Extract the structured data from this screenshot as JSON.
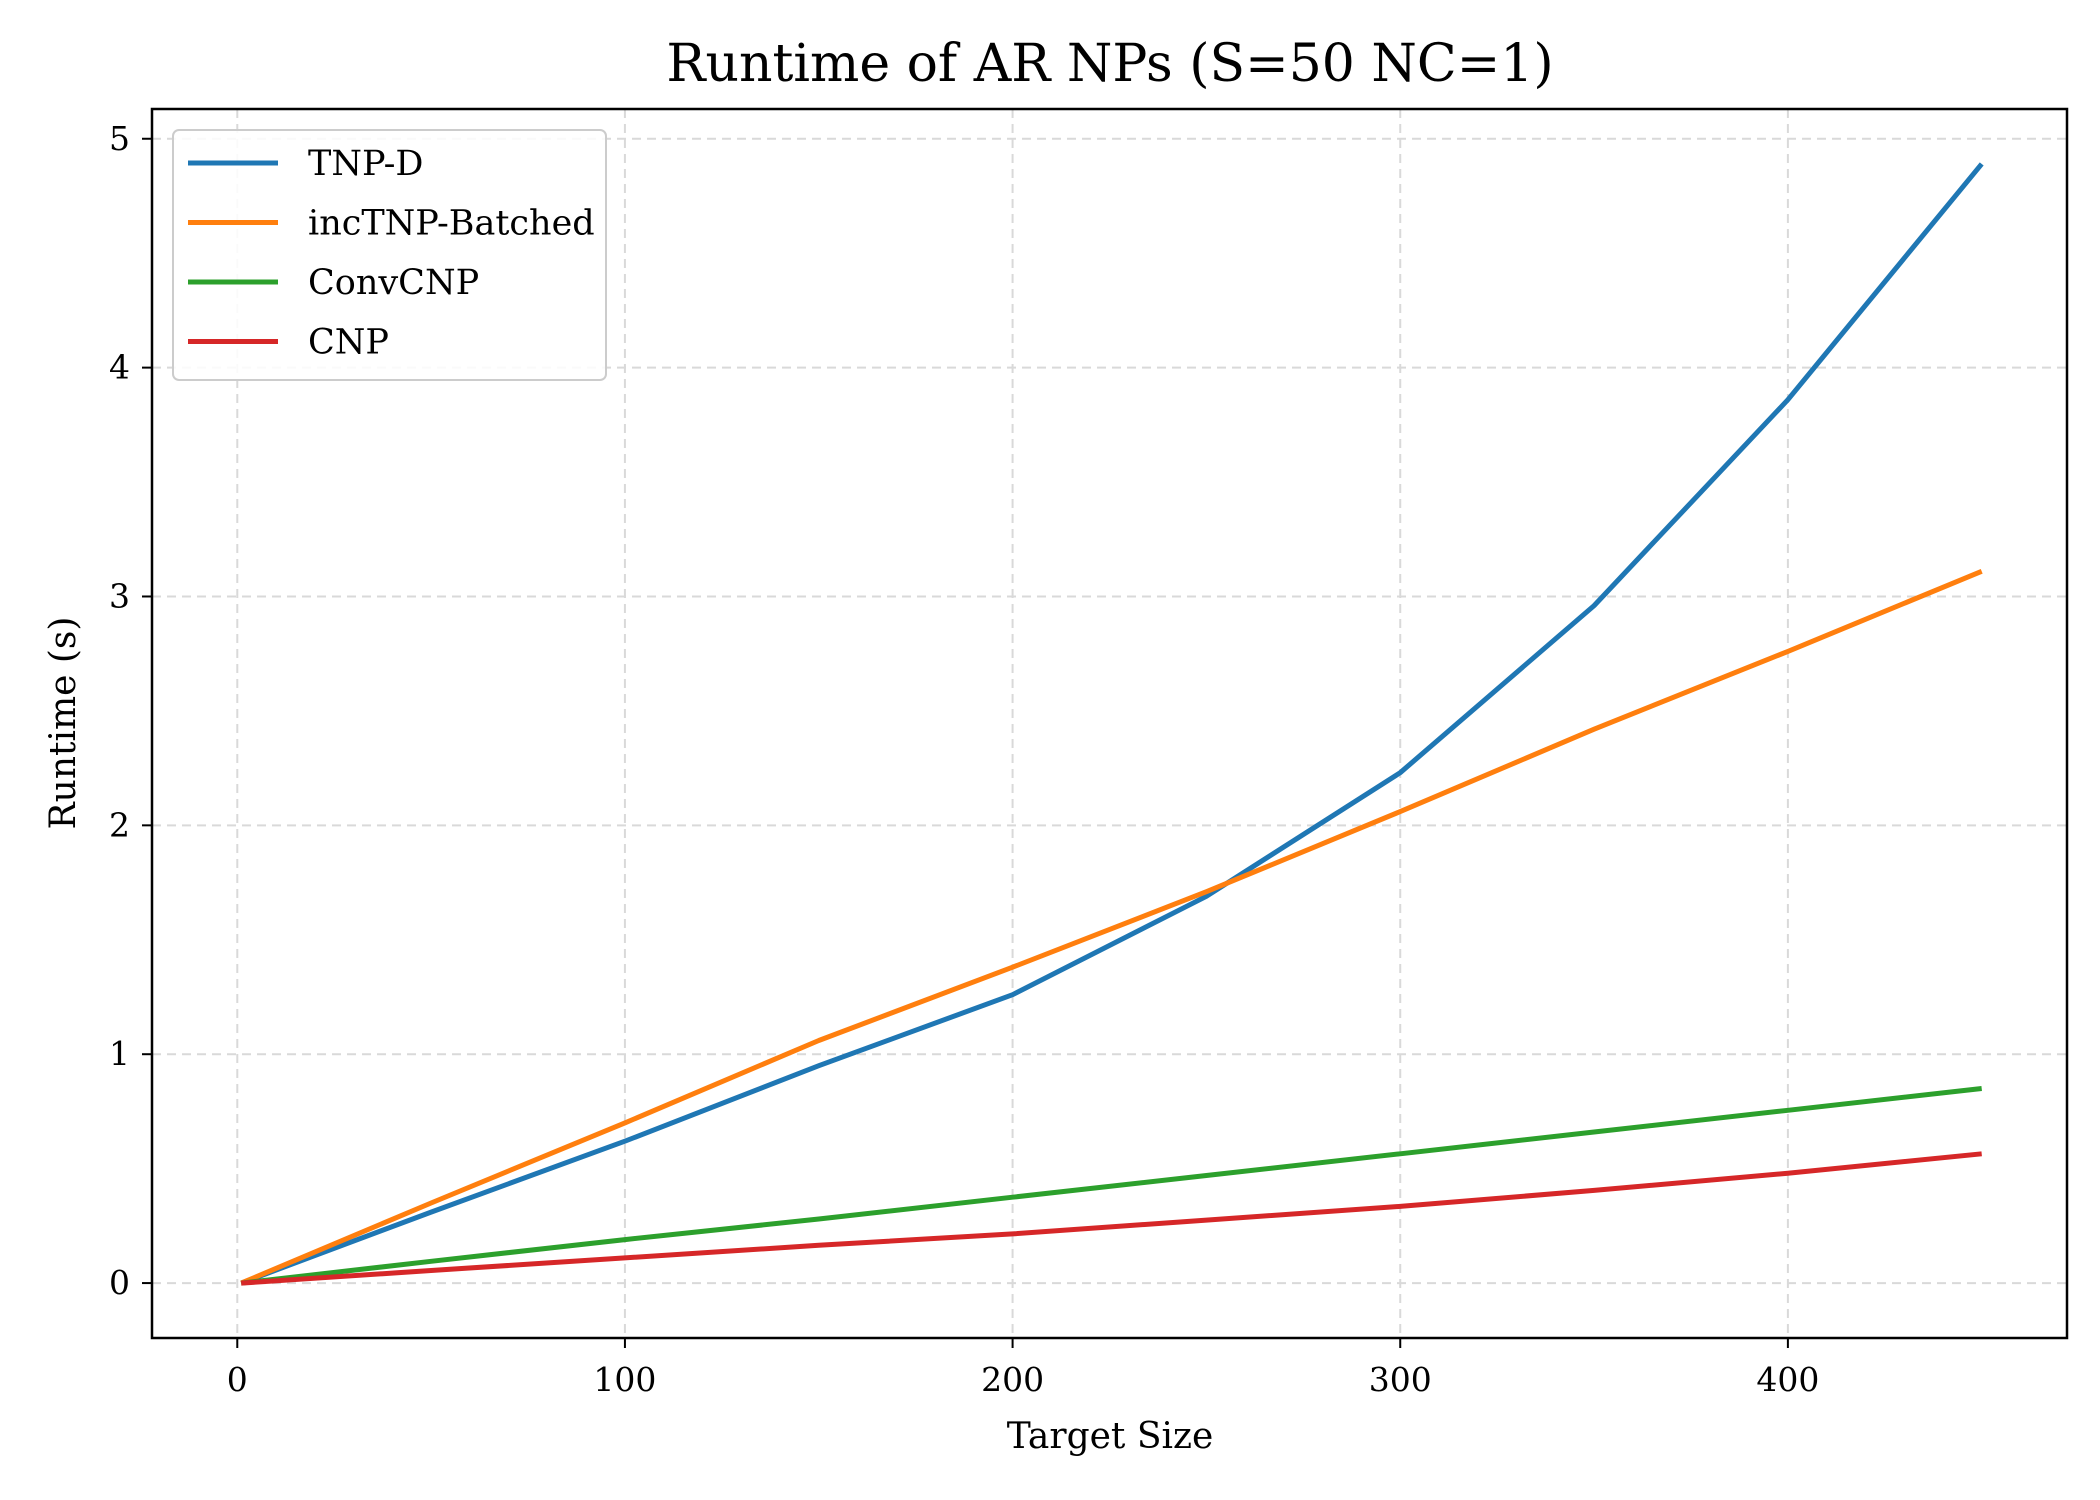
{
  "chart_data": {
    "type": "line",
    "title": "Runtime of AR NPs (S=50 NC=1)",
    "xlabel": "Target Size",
    "ylabel": "Runtime (s)",
    "xlim": [
      -22,
      472
    ],
    "ylim": [
      -0.24,
      5.13
    ],
    "xticks": [
      0,
      100,
      200,
      300,
      400
    ],
    "yticks": [
      0,
      1,
      2,
      3,
      4,
      5
    ],
    "grid": true,
    "legend_position": "top-left",
    "x": [
      1,
      50,
      100,
      150,
      200,
      250,
      300,
      350,
      400,
      450
    ],
    "series": [
      {
        "name": "TNP-D",
        "color": "#1f77b4",
        "values": [
          0.0,
          0.31,
          0.62,
          0.95,
          1.26,
          1.69,
          2.23,
          2.96,
          3.86,
          4.89
        ]
      },
      {
        "name": "incTNP-Batched",
        "color": "#ff7f0e",
        "values": [
          0.0,
          0.35,
          0.7,
          1.06,
          1.38,
          1.71,
          2.06,
          2.42,
          2.76,
          3.11
        ]
      },
      {
        "name": "ConvCNP",
        "color": "#2ca02c",
        "values": [
          0.0,
          0.095,
          0.19,
          0.28,
          0.375,
          0.47,
          0.565,
          0.66,
          0.755,
          0.85
        ]
      },
      {
        "name": "CNP",
        "color": "#d62728",
        "values": [
          0.0,
          0.055,
          0.11,
          0.165,
          0.215,
          0.275,
          0.335,
          0.405,
          0.48,
          0.565
        ]
      }
    ]
  }
}
